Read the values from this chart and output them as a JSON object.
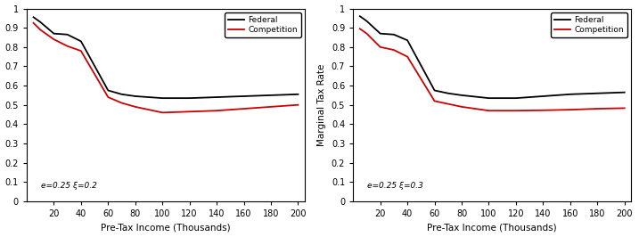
{
  "x": [
    5,
    10,
    20,
    30,
    40,
    60,
    70,
    80,
    100,
    120,
    140,
    160,
    180,
    200
  ],
  "panel_a": {
    "federal": [
      0.955,
      0.93,
      0.87,
      0.865,
      0.83,
      0.575,
      0.555,
      0.545,
      0.535,
      0.535,
      0.54,
      0.545,
      0.55,
      0.555
    ],
    "competition": [
      0.925,
      0.89,
      0.84,
      0.805,
      0.78,
      0.54,
      0.51,
      0.49,
      0.46,
      0.465,
      0.47,
      0.48,
      0.49,
      0.5
    ],
    "annotation": "e=0.25 ξ=0.2"
  },
  "panel_b": {
    "federal": [
      0.96,
      0.935,
      0.87,
      0.865,
      0.835,
      0.575,
      0.56,
      0.55,
      0.535,
      0.535,
      0.545,
      0.555,
      0.56,
      0.565
    ],
    "competition": [
      0.895,
      0.87,
      0.8,
      0.785,
      0.75,
      0.52,
      0.505,
      0.49,
      0.47,
      0.47,
      0.472,
      0.475,
      0.48,
      0.483
    ],
    "annotation": "e=0.25 ξ=0.3"
  },
  "xlabel": "Pre-Tax Income (Thousands)",
  "ylabel_left": "",
  "ylabel_right": "Marginal Tax Rate",
  "xlim": [
    0,
    205
  ],
  "ylim": [
    0,
    1.0
  ],
  "xticks": [
    20,
    40,
    60,
    80,
    100,
    120,
    140,
    160,
    180,
    200
  ],
  "yticks": [
    0,
    0.1,
    0.2,
    0.3,
    0.4,
    0.5,
    0.6,
    0.7,
    0.8,
    0.9,
    1.0
  ],
  "ytick_labels": [
    "0",
    "0.1",
    "0.2",
    "0.3",
    "0.4",
    "0.5",
    "0.6",
    "0.7",
    "0.8",
    "0.9",
    "1"
  ],
  "federal_color": "#000000",
  "competition_color": "#cc0000",
  "linewidth": 1.3,
  "legend_labels": [
    "Federal",
    "Competition"
  ],
  "annotation_fontsize": 6.5,
  "tick_fontsize": 7,
  "label_fontsize": 7.5
}
